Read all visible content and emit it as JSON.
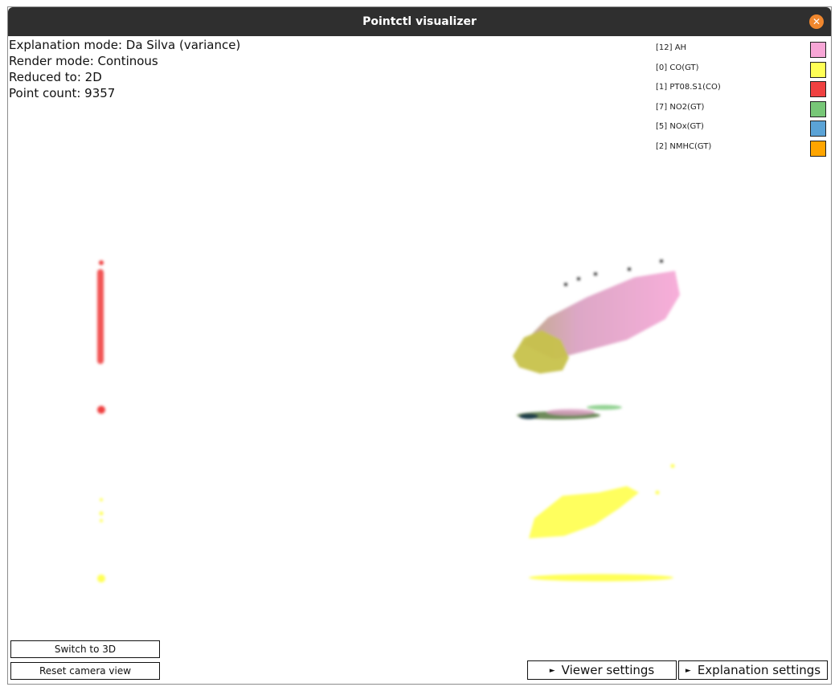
{
  "window": {
    "title": "Pointctl visualizer"
  },
  "info": {
    "explanation_mode": "Explanation mode: Da Silva (variance)",
    "render_mode": "Render mode: Continous",
    "reduced_to": "Reduced to: 2D",
    "point_count": "Point count: 9357"
  },
  "legend": [
    {
      "label": "[12] AH",
      "color": "#f7a6d6"
    },
    {
      "label": "[0] CO(GT)",
      "color": "#ffff55"
    },
    {
      "label": "[1] PT08.S1(CO)",
      "color": "#ef4141"
    },
    {
      "label": "[7] NO2(GT)",
      "color": "#77c777"
    },
    {
      "label": "[5] NOx(GT)",
      "color": "#5ba3d6"
    },
    {
      "label": "[2] NMHC(GT)",
      "color": "#ffa500"
    }
  ],
  "buttons": {
    "switch_3d": "Switch to 3D",
    "reset_camera": "Reset camera view",
    "viewer_settings": "Viewer settings",
    "explanation_settings": "Explanation settings"
  },
  "icons": {
    "close": "close-icon",
    "expand": "triangle-right-icon"
  }
}
